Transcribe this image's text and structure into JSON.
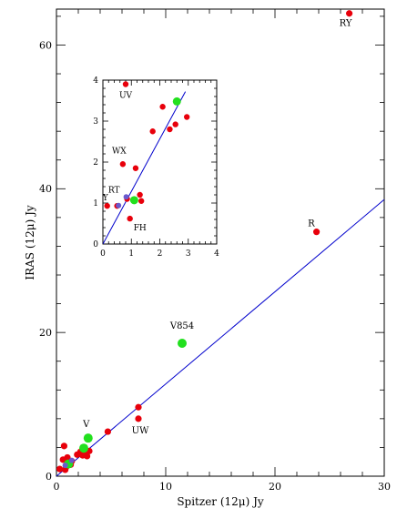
{
  "chart_data": [
    {
      "type": "scatter",
      "xlabel": "Spitzer (12μ) Jy",
      "ylabel": "IRAS (12μ) Jy",
      "xlim": [
        0,
        30
      ],
      "ylim": [
        0,
        65
      ],
      "x_ticks": [
        0,
        10,
        20,
        30
      ],
      "y_ticks": [
        0,
        20,
        40,
        60
      ],
      "fit_line": {
        "x": [
          0,
          30
        ],
        "y": [
          0,
          38.5
        ],
        "color": "#0000cc"
      },
      "series": [
        {
          "color": "#e8000b",
          "points": [
            {
              "x": 26.8,
              "y": 64.4,
              "label": "RY"
            },
            {
              "x": 23.8,
              "y": 34.0,
              "label": "R"
            },
            {
              "x": 7.5,
              "y": 9.6
            },
            {
              "x": 7.5,
              "y": 8.0,
              "label": "UW"
            },
            {
              "x": 4.7,
              "y": 6.2
            },
            {
              "x": 0.7,
              "y": 4.2
            },
            {
              "x": 0.6,
              "y": 2.3
            },
            {
              "x": 1.0,
              "y": 2.6
            },
            {
              "x": 1.4,
              "y": 2.1
            },
            {
              "x": 1.9,
              "y": 3.0
            },
            {
              "x": 2.2,
              "y": 3.4
            },
            {
              "x": 2.5,
              "y": 3.2
            },
            {
              "x": 3.0,
              "y": 3.5
            },
            {
              "x": 2.8,
              "y": 2.8
            },
            {
              "x": 2.4,
              "y": 2.9
            },
            {
              "x": 0.3,
              "y": 1.0
            },
            {
              "x": 0.9,
              "y": 1.3
            },
            {
              "x": 0.8,
              "y": 0.9
            },
            {
              "x": 1.3,
              "y": 1.6
            }
          ]
        },
        {
          "color": "#22e01e",
          "points": [
            {
              "x": 11.5,
              "y": 18.5,
              "label": "V854"
            },
            {
              "x": 2.9,
              "y": 5.3,
              "label": "V"
            },
            {
              "x": 2.5,
              "y": 3.9
            },
            {
              "x": 1.1,
              "y": 1.7
            }
          ]
        },
        {
          "color": "#6a5acd",
          "points": [
            {
              "x": 0.8,
              "y": 1.5
            },
            {
              "x": 1.4,
              "y": 2.2
            }
          ]
        }
      ]
    },
    {
      "type": "scatter",
      "xlim": [
        0,
        4
      ],
      "ylim": [
        0,
        4
      ],
      "x_ticks": [
        0,
        1,
        2,
        3,
        4
      ],
      "y_ticks": [
        0,
        1,
        2,
        3,
        4
      ],
      "fit_line": {
        "x": [
          0,
          2.9
        ],
        "y": [
          0,
          3.72
        ],
        "color": "#0000cc"
      },
      "series": [
        {
          "color": "#e8000b",
          "points": [
            {
              "x": 0.8,
              "y": 3.9,
              "label": "UV"
            },
            {
              "x": 2.1,
              "y": 3.35
            },
            {
              "x": 2.35,
              "y": 2.8
            },
            {
              "x": 2.55,
              "y": 2.92
            },
            {
              "x": 2.95,
              "y": 3.1
            },
            {
              "x": 1.75,
              "y": 2.75
            },
            {
              "x": 0.7,
              "y": 1.95,
              "label": "WX"
            },
            {
              "x": 1.15,
              "y": 1.85
            },
            {
              "x": 0.95,
              "y": 0.62,
              "label": "FH"
            },
            {
              "x": 0.15,
              "y": 0.93,
              "label": "Y"
            },
            {
              "x": 0.5,
              "y": 0.93
            },
            {
              "x": 1.3,
              "y": 1.2
            },
            {
              "x": 1.35,
              "y": 1.05
            },
            {
              "x": 0.85,
              "y": 1.1
            }
          ]
        },
        {
          "color": "#22e01e",
          "points": [
            {
              "x": 2.6,
              "y": 3.48
            },
            {
              "x": 1.1,
              "y": 1.07
            }
          ]
        },
        {
          "color": "#6a5acd",
          "points": [
            {
              "x": 0.55,
              "y": 0.94,
              "label": "RT"
            },
            {
              "x": 0.82,
              "y": 1.15
            }
          ]
        }
      ]
    }
  ]
}
